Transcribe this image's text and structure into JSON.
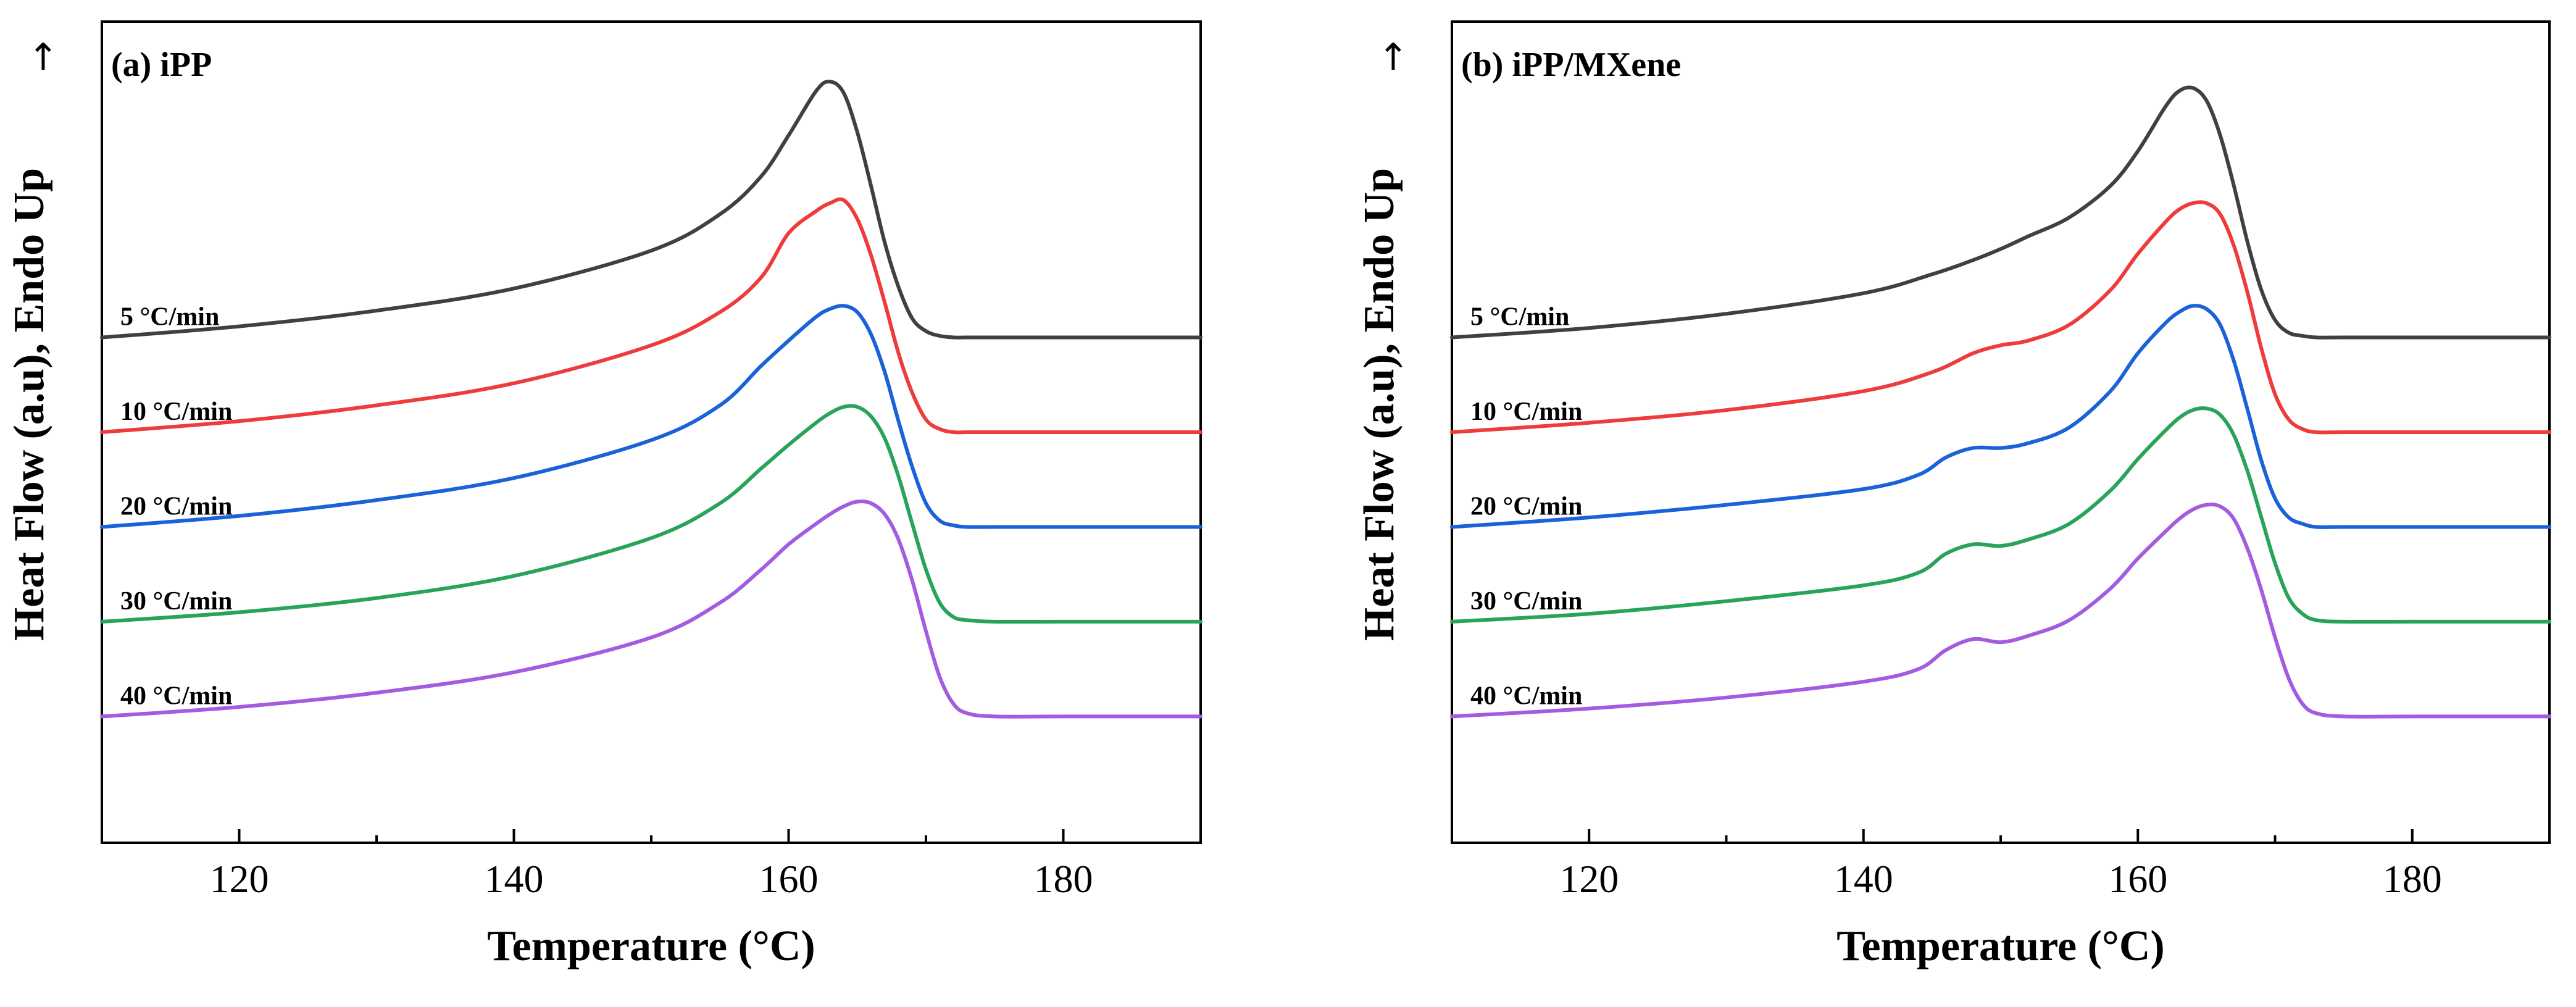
{
  "chart_data": [
    {
      "type": "line",
      "panel_label": "(a) iPP",
      "xlabel": "Temperature (°C)",
      "ylabel": "Heat Flow (a.u), Endo Up",
      "arrow": "↑",
      "xlim": [
        110,
        190
      ],
      "xticks": [
        120,
        140,
        160,
        180
      ],
      "xtick_labels": [
        "120",
        "140",
        "160",
        "180"
      ],
      "ylim": [
        -0.8,
        4.4
      ],
      "yticks_shown": false,
      "grid": false,
      "series": [
        {
          "name": "5  °C/min",
          "color": "#404040",
          "offset": 2.4,
          "x": [
            110,
            120,
            130,
            140,
            150,
            155,
            158,
            160,
            162,
            163,
            164,
            165,
            166,
            167,
            168,
            169,
            170,
            171,
            172,
            173,
            175,
            180,
            190
          ],
          "y": [
            0.0,
            0.07,
            0.17,
            0.31,
            0.55,
            0.78,
            1.02,
            1.28,
            1.56,
            1.62,
            1.55,
            1.3,
            0.96,
            0.6,
            0.32,
            0.12,
            0.04,
            0.01,
            0.0,
            0.0,
            0.0,
            0.0,
            0.0
          ]
        },
        {
          "name": "10 °C/min",
          "color": "#ee3b3b",
          "offset": 1.8,
          "x": [
            110,
            120,
            130,
            140,
            150,
            155,
            158,
            160,
            162,
            163,
            164,
            165,
            166,
            167,
            168,
            169,
            170,
            171,
            172,
            173,
            175,
            180,
            190
          ],
          "y": [
            0.0,
            0.07,
            0.17,
            0.31,
            0.55,
            0.76,
            0.98,
            1.26,
            1.4,
            1.45,
            1.47,
            1.35,
            1.12,
            0.82,
            0.5,
            0.25,
            0.08,
            0.02,
            0.0,
            0.0,
            0.0,
            0.0,
            0.0
          ]
        },
        {
          "name": "20 °C/min",
          "color": "#1b62d8",
          "offset": 1.2,
          "x": [
            110,
            120,
            130,
            140,
            150,
            155,
            158,
            160,
            162,
            163,
            164,
            165,
            166,
            167,
            168,
            169,
            170,
            171,
            172,
            173,
            175,
            180,
            190
          ],
          "y": [
            0.0,
            0.07,
            0.17,
            0.31,
            0.55,
            0.77,
            1.02,
            1.18,
            1.33,
            1.38,
            1.4,
            1.36,
            1.22,
            0.98,
            0.67,
            0.38,
            0.15,
            0.04,
            0.01,
            0.0,
            0.0,
            0.0,
            0.0
          ]
        },
        {
          "name": "30 °C/min",
          "color": "#28a35a",
          "offset": 0.6,
          "x": [
            110,
            120,
            130,
            140,
            150,
            155,
            158,
            160,
            162,
            163,
            164,
            165,
            166,
            167,
            168,
            169,
            170,
            171,
            172,
            173,
            175,
            180,
            190
          ],
          "y": [
            0.0,
            0.06,
            0.15,
            0.29,
            0.53,
            0.75,
            0.97,
            1.12,
            1.26,
            1.32,
            1.36,
            1.36,
            1.3,
            1.16,
            0.92,
            0.62,
            0.33,
            0.12,
            0.03,
            0.01,
            0.0,
            0.0,
            0.0
          ]
        },
        {
          "name": "40 °C/min",
          "color": "#a35ce0",
          "offset": 0.0,
          "x": [
            110,
            120,
            130,
            140,
            150,
            155,
            158,
            160,
            162,
            163,
            164,
            165,
            166,
            167,
            168,
            169,
            170,
            171,
            172,
            173,
            175,
            180,
            190
          ],
          "y": [
            0.0,
            0.06,
            0.15,
            0.28,
            0.5,
            0.72,
            0.93,
            1.09,
            1.22,
            1.28,
            1.33,
            1.36,
            1.35,
            1.28,
            1.12,
            0.86,
            0.54,
            0.25,
            0.08,
            0.02,
            0.0,
            0.0,
            0.0
          ]
        }
      ]
    },
    {
      "type": "line",
      "panel_label": "(b) iPP/MXene",
      "xlabel": "Temperature (°C)",
      "ylabel": "Heat Flow (a.u), Endo Up",
      "arrow": "↑",
      "xlim": [
        110,
        190
      ],
      "xticks": [
        120,
        140,
        160,
        180
      ],
      "xtick_labels": [
        "120",
        "140",
        "160",
        "180"
      ],
      "ylim": [
        -0.8,
        4.4
      ],
      "yticks_shown": false,
      "grid": false,
      "series": [
        {
          "name": "5  °C/min",
          "color": "#404040",
          "offset": 2.4,
          "x": [
            110,
            120,
            130,
            140,
            145,
            148,
            150,
            152,
            155,
            158,
            160,
            162,
            163,
            164,
            165,
            166,
            167,
            168,
            169,
            170,
            171,
            172,
            173,
            175,
            180,
            190
          ],
          "y": [
            0.0,
            0.06,
            0.15,
            0.28,
            0.4,
            0.49,
            0.56,
            0.64,
            0.76,
            0.96,
            1.18,
            1.46,
            1.56,
            1.58,
            1.5,
            1.28,
            0.96,
            0.6,
            0.3,
            0.11,
            0.03,
            0.01,
            0.0,
            0.0,
            0.0,
            0.0
          ]
        },
        {
          "name": "10 °C/min",
          "color": "#ee3b3b",
          "offset": 1.8,
          "x": [
            110,
            120,
            130,
            140,
            145,
            148,
            150,
            152,
            155,
            158,
            160,
            162,
            163,
            164,
            165,
            166,
            167,
            168,
            169,
            170,
            171,
            172,
            173,
            175,
            180,
            190
          ],
          "y": [
            0.0,
            0.06,
            0.14,
            0.26,
            0.38,
            0.5,
            0.55,
            0.58,
            0.68,
            0.9,
            1.13,
            1.33,
            1.41,
            1.45,
            1.45,
            1.38,
            1.18,
            0.88,
            0.53,
            0.24,
            0.08,
            0.02,
            0.0,
            0.0,
            0.0,
            0.0
          ]
        },
        {
          "name": "20 °C/min",
          "color": "#1b62d8",
          "offset": 1.2,
          "x": [
            110,
            120,
            130,
            140,
            144,
            146,
            148,
            150,
            152,
            155,
            158,
            160,
            162,
            163,
            164,
            165,
            166,
            167,
            168,
            169,
            170,
            171,
            172,
            173,
            175,
            180,
            190
          ],
          "y": [
            0.0,
            0.06,
            0.14,
            0.24,
            0.33,
            0.44,
            0.5,
            0.5,
            0.53,
            0.63,
            0.86,
            1.1,
            1.29,
            1.36,
            1.4,
            1.38,
            1.28,
            1.05,
            0.74,
            0.42,
            0.18,
            0.06,
            0.02,
            0.0,
            0.0,
            0.0,
            0.0
          ]
        },
        {
          "name": "30 °C/min",
          "color": "#28a35a",
          "offset": 0.6,
          "x": [
            110,
            120,
            130,
            140,
            144,
            146,
            148,
            150,
            152,
            155,
            158,
            160,
            162,
            163,
            164,
            165,
            166,
            167,
            168,
            169,
            170,
            171,
            172,
            173,
            175,
            180,
            190
          ],
          "y": [
            0.0,
            0.05,
            0.13,
            0.23,
            0.31,
            0.43,
            0.49,
            0.48,
            0.52,
            0.62,
            0.83,
            1.03,
            1.21,
            1.29,
            1.34,
            1.35,
            1.31,
            1.18,
            0.95,
            0.66,
            0.37,
            0.15,
            0.05,
            0.01,
            0.0,
            0.0,
            0.0
          ]
        },
        {
          "name": "40 °C/min",
          "color": "#a35ce0",
          "offset": 0.0,
          "x": [
            110,
            120,
            130,
            140,
            144,
            146,
            148,
            150,
            152,
            155,
            158,
            160,
            162,
            163,
            164,
            165,
            166,
            167,
            168,
            169,
            170,
            171,
            172,
            173,
            175,
            180,
            190
          ],
          "y": [
            0.0,
            0.05,
            0.12,
            0.22,
            0.3,
            0.42,
            0.49,
            0.47,
            0.51,
            0.61,
            0.81,
            1.0,
            1.17,
            1.25,
            1.31,
            1.34,
            1.33,
            1.25,
            1.06,
            0.8,
            0.5,
            0.24,
            0.08,
            0.02,
            0.0,
            0.0,
            0.0
          ]
        }
      ]
    }
  ]
}
